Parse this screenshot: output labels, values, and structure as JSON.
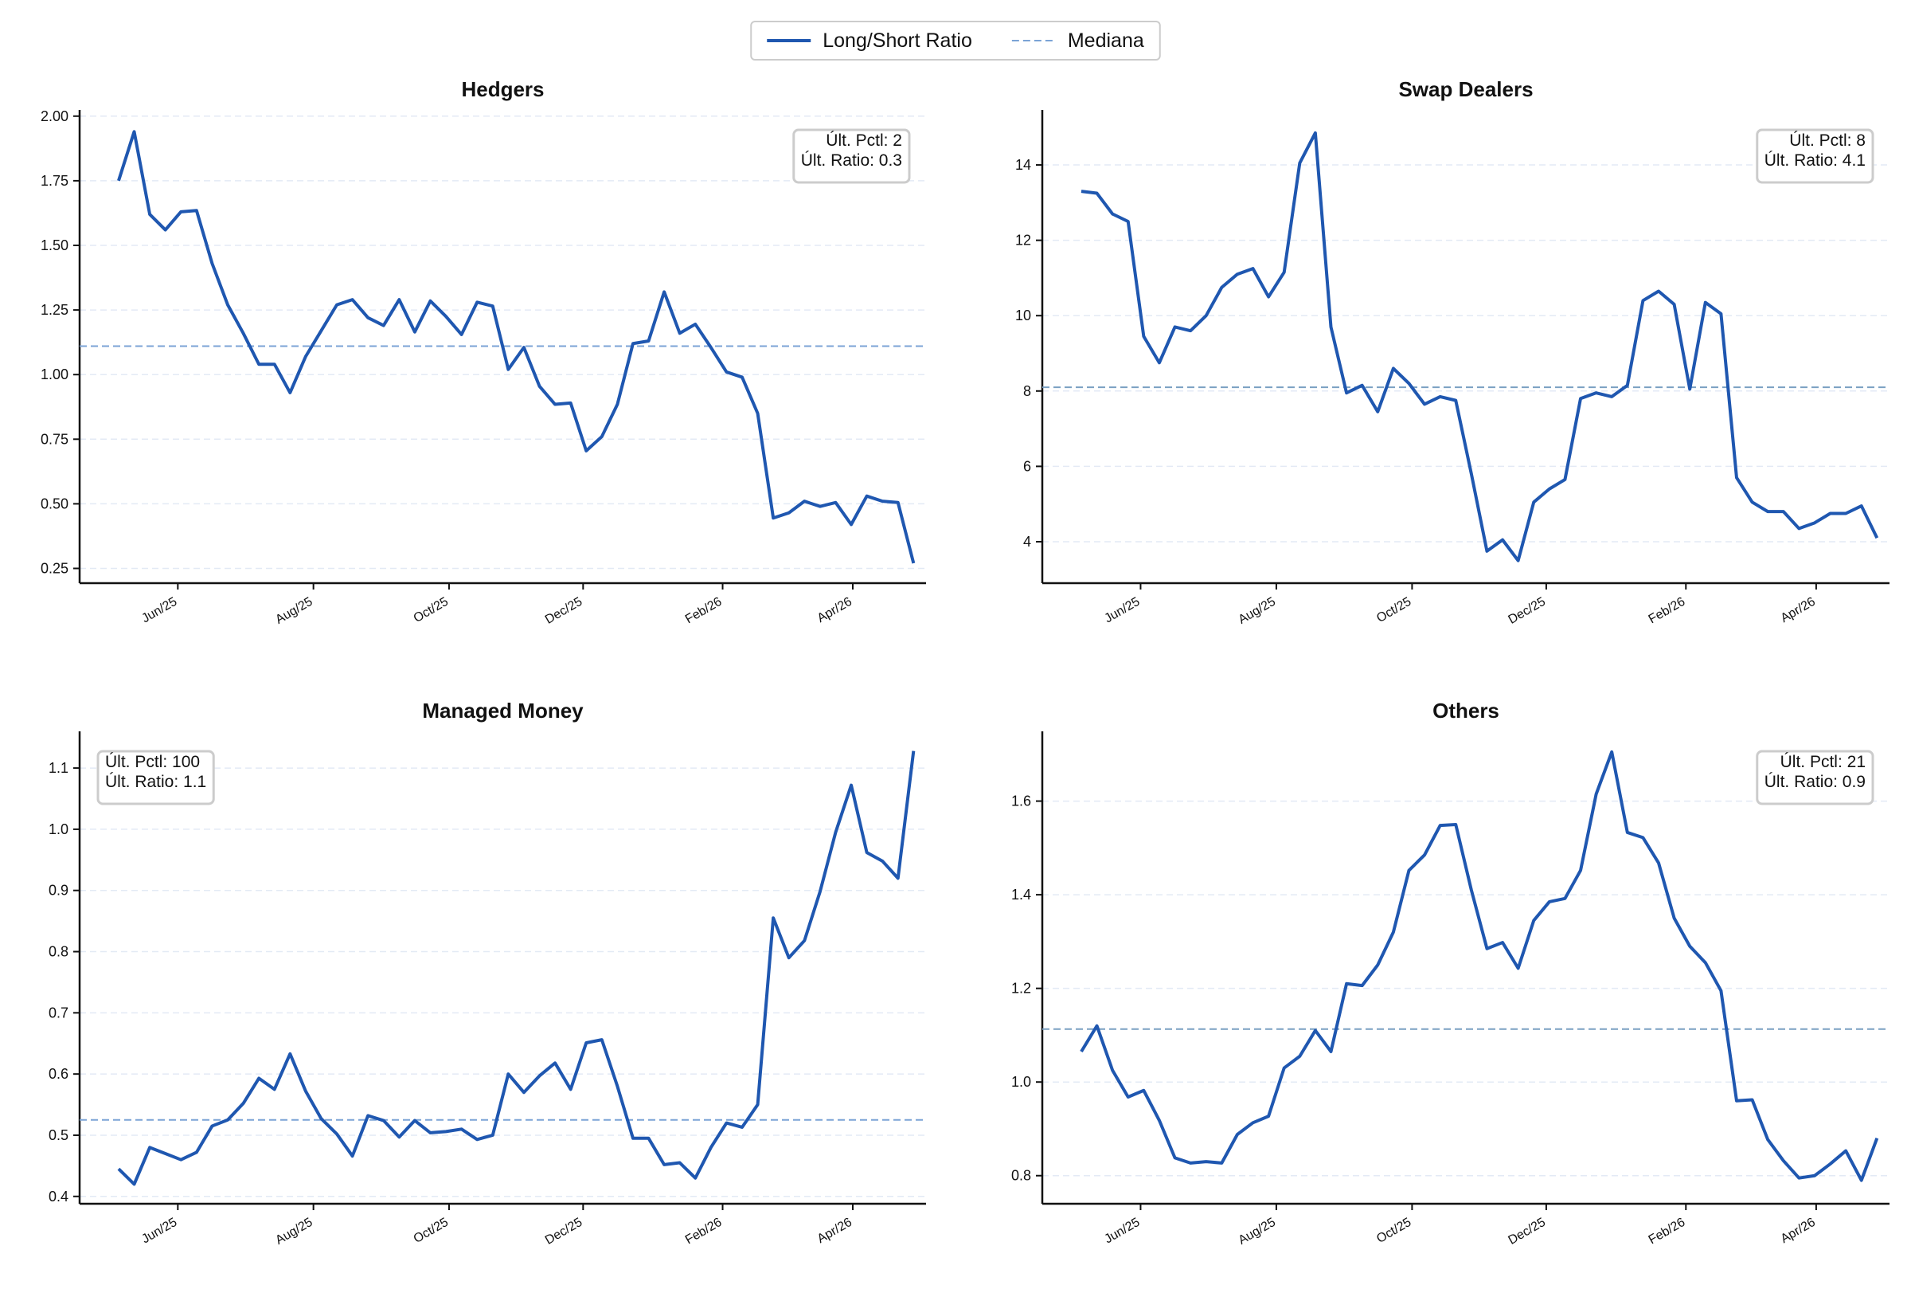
{
  "legend": [
    {
      "name": "Long/Short Ratio",
      "color": "#1f57b0",
      "style": "solid"
    },
    {
      "name": "Mediana",
      "color": "#7ba3d6",
      "style": "dashed"
    }
  ],
  "chart_data": [
    {
      "type": "line",
      "title": "Hedgers",
      "color": "#1f57b0",
      "median": 1.11,
      "median_color": "#7ba3d6",
      "annotations": [
        "Últ. Pctl: 2",
        "Últ. Ratio: 0.3"
      ],
      "annotation_corner": "upper right",
      "grid": true,
      "values": [
        1.75,
        1.94,
        1.62,
        1.56,
        1.63,
        1.635,
        1.43,
        1.27,
        1.16,
        1.04,
        1.04,
        0.93,
        1.07,
        1.17,
        1.27,
        1.29,
        1.22,
        1.19,
        1.29,
        1.165,
        1.285,
        1.225,
        1.155,
        1.28,
        1.265,
        1.02,
        1.105,
        0.955,
        0.885,
        0.89,
        0.705,
        0.76,
        0.885,
        1.12,
        1.13,
        1.32,
        1.16,
        1.195,
        1.105,
        1.01,
        0.99,
        0.85,
        0.445,
        0.465,
        0.51,
        0.49,
        0.505,
        0.42,
        0.53,
        0.51,
        0.505,
        0.27
      ],
      "xlim": [
        -2.5,
        51.8
      ],
      "xticks": [
        {
          "value": 3.8,
          "label": "Jun/25"
        },
        {
          "value": 12.5,
          "label": "Aug/25"
        },
        {
          "value": 21.2,
          "label": "Oct/25"
        },
        {
          "value": 29.8,
          "label": "Dec/25"
        },
        {
          "value": 38.75,
          "label": "Feb/26"
        },
        {
          "value": 47.1,
          "label": "Apr/26"
        }
      ],
      "ylim": [
        0.193,
        2.024
      ],
      "yticks": [
        0.25,
        {
          "value": 0.5,
          "label": "0.50"
        },
        0.75,
        {
          "value": 1,
          "label": "1.00"
        },
        1.25,
        {
          "value": 1.5,
          "label": "1.50"
        },
        1.75,
        {
          "value": 2,
          "label": "2.00"
        }
      ]
    },
    {
      "type": "line",
      "title": "Swap Dealers",
      "color": "#1f57b0",
      "median": 8.1,
      "median_color": "#7aa0c2",
      "annotations": [
        "Últ. Pctl: 8",
        "Últ. Ratio: 4.1"
      ],
      "annotation_corner": "upper right",
      "grid": true,
      "values": [
        13.3,
        13.25,
        12.7,
        12.5,
        9.45,
        8.75,
        9.7,
        9.6,
        10.0,
        10.75,
        11.1,
        11.25,
        10.5,
        11.15,
        14.05,
        14.85,
        9.7,
        7.95,
        8.15,
        7.45,
        8.6,
        8.2,
        7.65,
        7.85,
        7.75,
        5.8,
        3.75,
        4.05,
        3.5,
        5.05,
        5.4,
        5.65,
        7.8,
        7.95,
        7.85,
        8.15,
        10.4,
        10.65,
        10.3,
        8.05,
        10.35,
        10.05,
        5.7,
        5.05,
        4.8,
        4.8,
        4.35,
        4.5,
        4.75,
        4.75,
        4.95,
        4.1
      ],
      "xlim": [
        -2.5,
        51.8
      ],
      "xticks": [
        {
          "value": 3.8,
          "label": "Jun/25"
        },
        {
          "value": 12.5,
          "label": "Aug/25"
        },
        {
          "value": 21.2,
          "label": "Oct/25"
        },
        {
          "value": 29.8,
          "label": "Dec/25"
        },
        {
          "value": 38.75,
          "label": "Feb/26"
        },
        {
          "value": 47.1,
          "label": "Apr/26"
        }
      ],
      "ylim": [
        2.9,
        15.46
      ],
      "yticks": [
        4,
        6,
        8,
        10,
        12,
        14
      ]
    },
    {
      "type": "line",
      "title": "Managed Money",
      "color": "#1f57b0",
      "median": 0.525,
      "median_color": "#7ba3d6",
      "annotations": [
        "Últ. Pctl: 100",
        "Últ. Ratio: 1.1"
      ],
      "annotation_corner": "upper left",
      "grid": true,
      "values": [
        0.445,
        0.42,
        0.48,
        0.47,
        0.46,
        0.472,
        0.515,
        0.525,
        0.552,
        0.593,
        0.575,
        0.633,
        0.572,
        0.527,
        0.502,
        0.466,
        0.532,
        0.524,
        0.497,
        0.524,
        0.504,
        0.506,
        0.51,
        0.493,
        0.5,
        0.6,
        0.57,
        0.597,
        0.618,
        0.575,
        0.651,
        0.656,
        0.58,
        0.495,
        0.495,
        0.452,
        0.455,
        0.43,
        0.48,
        0.52,
        0.513,
        0.55,
        0.855,
        0.79,
        0.818,
        0.898,
        0.995,
        1.072,
        0.962,
        0.948,
        0.92,
        1.128
      ],
      "xlim": [
        -2.5,
        51.8
      ],
      "xticks": [
        {
          "value": 3.8,
          "label": "Jun/25"
        },
        {
          "value": 12.5,
          "label": "Aug/25"
        },
        {
          "value": 21.2,
          "label": "Oct/25"
        },
        {
          "value": 29.8,
          "label": "Dec/25"
        },
        {
          "value": 38.75,
          "label": "Feb/26"
        },
        {
          "value": 47.1,
          "label": "Apr/26"
        }
      ],
      "ylim": [
        0.388,
        1.16
      ],
      "yticks": [
        0.4,
        0.5,
        0.6,
        0.7,
        0.8,
        0.9,
        {
          "value": 1,
          "label": "1.0"
        },
        1.1
      ]
    },
    {
      "type": "line",
      "title": "Others",
      "color": "#1f57b0",
      "median": 1.113,
      "median_color": "#7aa0c2",
      "annotations": [
        "Últ. Pctl: 21",
        "Últ. Ratio: 0.9"
      ],
      "annotation_corner": "upper right",
      "grid": true,
      "values": [
        1.065,
        1.12,
        1.025,
        0.968,
        0.982,
        0.918,
        0.838,
        0.827,
        0.83,
        0.827,
        0.888,
        0.913,
        0.927,
        1.03,
        1.055,
        1.11,
        1.065,
        1.21,
        1.206,
        1.25,
        1.32,
        1.452,
        1.485,
        1.548,
        1.55,
        1.41,
        1.285,
        1.298,
        1.243,
        1.345,
        1.385,
        1.392,
        1.452,
        1.615,
        1.705,
        1.533,
        1.522,
        1.468,
        1.35,
        1.29,
        1.255,
        1.195,
        0.96,
        0.962,
        0.877,
        0.832,
        0.795,
        0.8,
        0.825,
        0.853,
        0.79,
        0.88
      ],
      "xlim": [
        -2.5,
        51.8
      ],
      "xticks": [
        {
          "value": 3.8,
          "label": "Jun/25"
        },
        {
          "value": 12.5,
          "label": "Aug/25"
        },
        {
          "value": 21.2,
          "label": "Oct/25"
        },
        {
          "value": 29.8,
          "label": "Dec/25"
        },
        {
          "value": 38.75,
          "label": "Feb/26"
        },
        {
          "value": 47.1,
          "label": "Apr/26"
        }
      ],
      "ylim": [
        0.74,
        1.749
      ],
      "yticks": [
        0.8,
        {
          "value": 1,
          "label": "1.0"
        },
        1.2,
        1.4,
        1.6
      ]
    }
  ]
}
